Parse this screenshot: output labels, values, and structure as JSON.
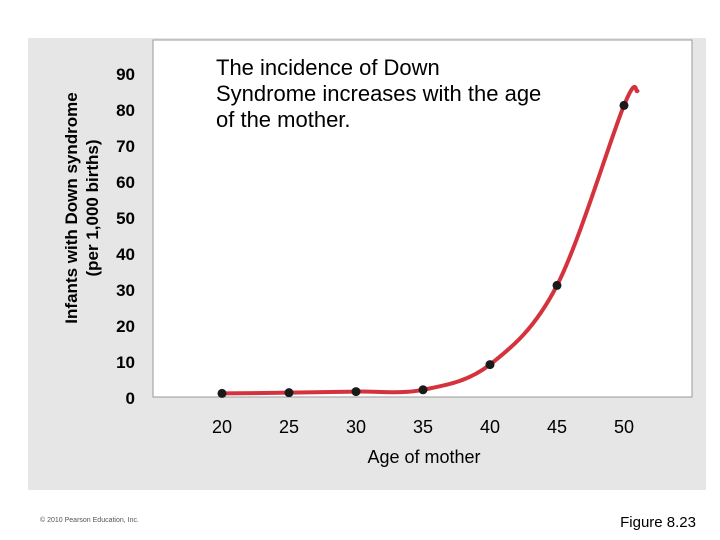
{
  "chart_data": {
    "type": "line",
    "annotation": "The incidence of Down Syndrome increases with the age of the mother.",
    "xlabel": "Age of mother",
    "ylabel_line1": "Infants with Down syndrome",
    "ylabel_line2": "(per 1,000 births)",
    "x_ticks": [
      20,
      25,
      30,
      35,
      40,
      45,
      50
    ],
    "y_ticks": [
      0,
      10,
      20,
      30,
      40,
      50,
      60,
      70,
      80,
      90
    ],
    "xlim": [
      20,
      50
    ],
    "ylim": [
      0,
      90
    ],
    "series": [
      {
        "name": "Down syndrome incidence",
        "x": [
          20,
          25,
          30,
          35,
          40,
          45,
          50
        ],
        "y": [
          1,
          1.2,
          1.5,
          2,
          9,
          31,
          81
        ]
      }
    ],
    "line_extends_to": [
      51,
      85
    ],
    "line_color": "#d4333e",
    "point_color": "#1a1a1a",
    "grid": false
  },
  "footer": {
    "copyright": "© 2010 Pearson Education, Inc.",
    "figure_label": "Figure 8.23"
  }
}
